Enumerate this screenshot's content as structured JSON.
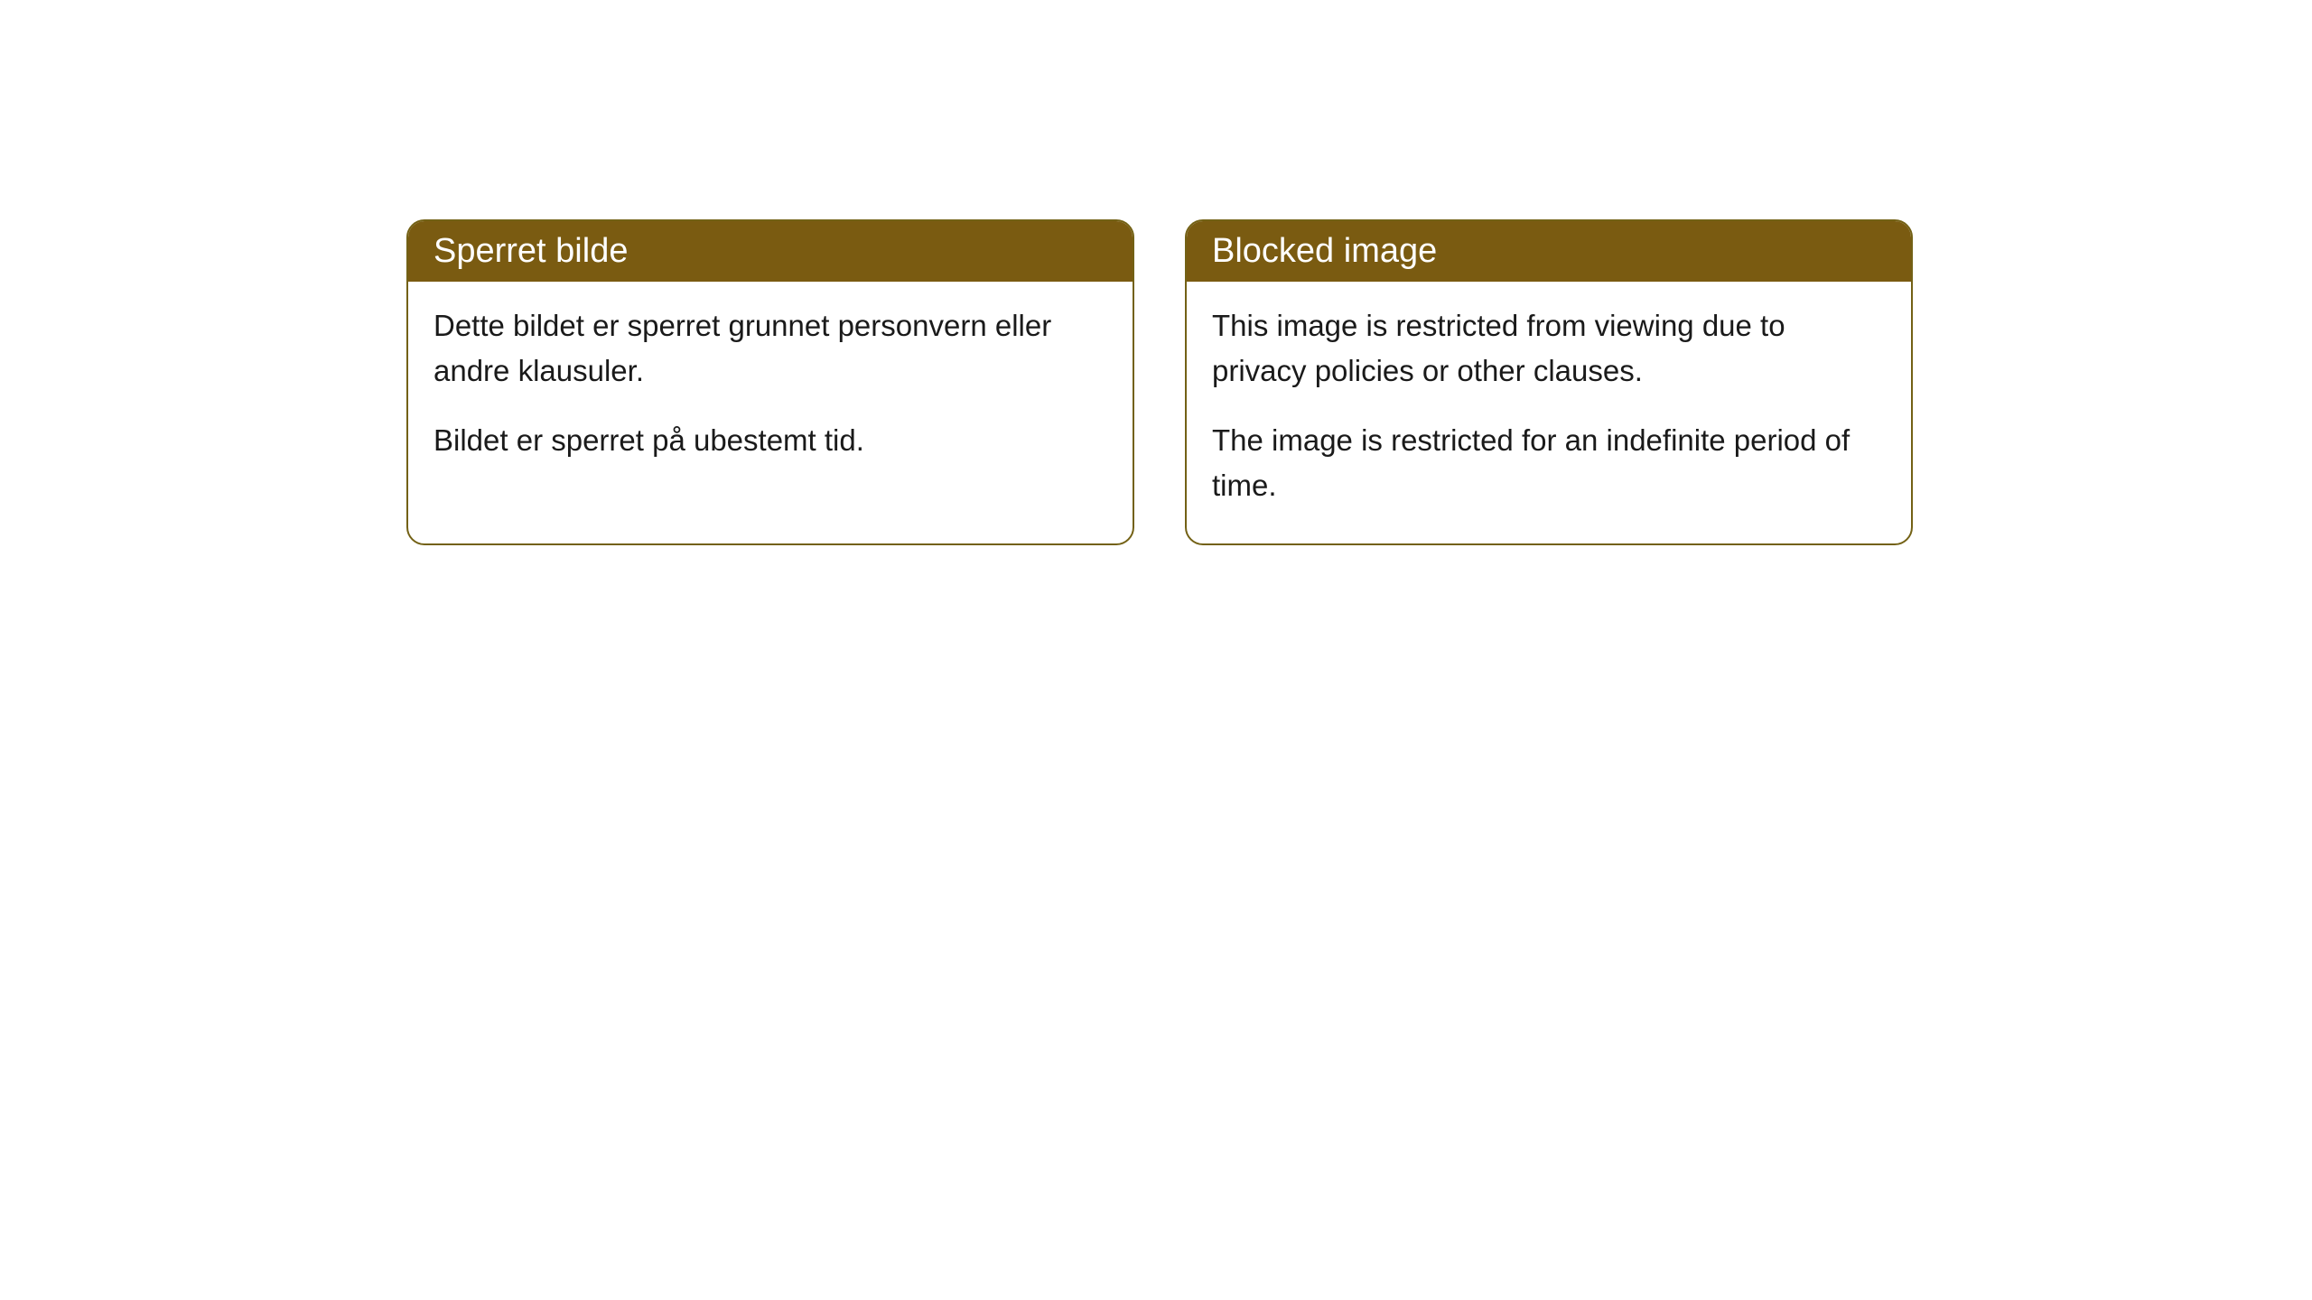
{
  "cards": {
    "norwegian": {
      "title": "Sperret bilde",
      "paragraph1": "Dette bildet er sperret grunnet personvern eller andre klausuler.",
      "paragraph2": "Bildet er sperret på ubestemt tid."
    },
    "english": {
      "title": "Blocked image",
      "paragraph1": "This image is restricted from viewing due to privacy policies or other clauses.",
      "paragraph2": "The image is restricted for an indefinite period of time."
    }
  },
  "styling": {
    "header_background": "#7a5b11",
    "header_text_color": "#ffffff",
    "border_color": "#736115",
    "body_background": "#ffffff",
    "body_text_color": "#1a1a1a",
    "border_radius": 20,
    "title_fontsize": 38,
    "body_fontsize": 33
  }
}
